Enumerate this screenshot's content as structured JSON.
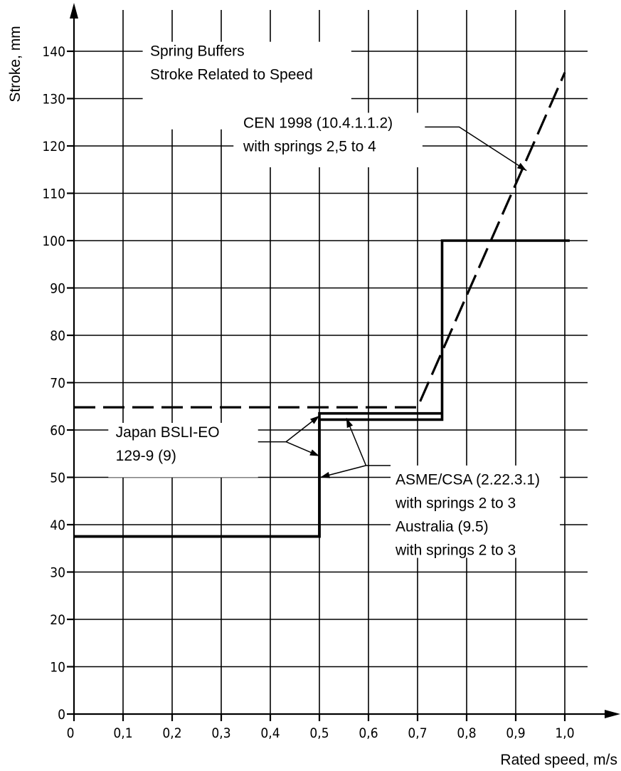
{
  "chart_data": {
    "type": "line",
    "title": "Spring Buffers",
    "subtitle": "Stroke Related to Speed",
    "xlabel": "Rated speed, m/s",
    "ylabel": "Stroke, mm",
    "xlim": [
      0,
      1.08
    ],
    "ylim": [
      0,
      148
    ],
    "grid": true,
    "x_ticks": [
      0,
      0.1,
      0.2,
      0.3,
      0.4,
      0.5,
      0.6,
      0.7,
      0.8,
      0.9,
      1.0
    ],
    "x_tick_labels": [
      "0",
      "0,1",
      "0,2",
      "0,3",
      "0,4",
      "0,5",
      "0,6",
      "0,7",
      "0,8",
      "0,9",
      "1,0"
    ],
    "y_ticks": [
      0,
      10,
      20,
      30,
      40,
      50,
      60,
      70,
      80,
      90,
      100,
      110,
      120,
      130,
      140
    ],
    "y_tick_labels": [
      "0",
      "10",
      "20",
      "30",
      "40",
      "50",
      "60",
      "70",
      "80",
      "90",
      "100",
      "110",
      "120",
      "130",
      "140"
    ],
    "series": [
      {
        "name": "Japan BSLI-EO 129-9 (9)",
        "style": "solid",
        "points": [
          [
            0,
            37.5
          ],
          [
            0.5,
            37.5
          ],
          [
            0.5,
            63.5
          ],
          [
            0.75,
            63.5
          ]
        ]
      },
      {
        "name": "ASME/CSA (2.22.3.1) with springs 2 to 3 / Australia (9.5) with springs 2 to 3",
        "style": "solid",
        "points": [
          [
            0,
            37.5
          ],
          [
            0.5,
            37.5
          ],
          [
            0.5,
            62.2
          ],
          [
            0.75,
            62.2
          ],
          [
            0.75,
            100
          ],
          [
            1.01,
            100
          ]
        ]
      },
      {
        "name": "CEN 1998 (10.4.1.1.2) with springs 2,5 to 4",
        "style": "dashed",
        "points": [
          [
            0,
            64.8
          ],
          [
            0.7,
            64.8
          ],
          [
            1.0,
            135.5
          ]
        ]
      }
    ],
    "annotations": [
      {
        "lines": [
          "Spring Buffers",
          "Stroke Related to Speed"
        ]
      },
      {
        "lines": [
          "CEN 1998 (10.4.1.1.2)",
          "with springs 2,5 to 4"
        ]
      },
      {
        "lines": [
          "Japan BSLI-EO",
          "129-9 (9)"
        ]
      },
      {
        "lines": [
          "ASME/CSA (2.22.3.1)",
          "with springs 2 to 3",
          "Australia (9.5)",
          "with springs 2 to 3"
        ]
      }
    ]
  }
}
